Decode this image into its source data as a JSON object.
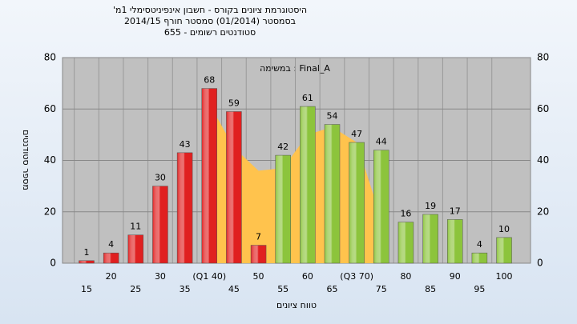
{
  "chart_data": {
    "type": "bar",
    "title": "היסטוגרמת ציונים בקורס - חשבון אינפיניטסימלי 1מ'",
    "subtitle": "בסמסטר  (01/2014)  סמסטר חורף 2014/15",
    "subtitle2": "סטודנטים רשומים - 655",
    "annotation": "Final_A : במשימה",
    "x_label": "טווח ציונים",
    "y_label": "מספר סטודנטים",
    "categories": [
      "15",
      "20",
      "25",
      "30",
      "35",
      "(Q1 40)",
      "45",
      "50",
      "55",
      "60",
      "65",
      "(Q3 70)",
      "75",
      "80",
      "85",
      "90",
      "95",
      "100"
    ],
    "values": [
      1,
      4,
      11,
      30,
      43,
      68,
      59,
      7,
      42,
      61,
      54,
      47,
      44,
      16,
      19,
      17,
      4,
      10
    ],
    "colors": [
      "#e02020",
      "#e02020",
      "#e02020",
      "#e02020",
      "#e02020",
      "#e02020",
      "#e02020",
      "#e02020",
      "#8cc43c",
      "#8cc43c",
      "#8cc43c",
      "#8cc43c",
      "#8cc43c",
      "#8cc43c",
      "#8cc43c",
      "#8cc43c",
      "#8cc43c",
      "#8cc43c"
    ],
    "area_values": [
      null,
      null,
      null,
      null,
      null,
      62,
      45,
      36,
      37,
      50,
      53,
      47,
      17,
      null,
      null,
      null,
      null,
      null
    ],
    "area_color": "#ffc34d",
    "ylim": [
      0,
      80
    ],
    "yticks": [
      0,
      20,
      40,
      60,
      80
    ],
    "grid": true
  }
}
